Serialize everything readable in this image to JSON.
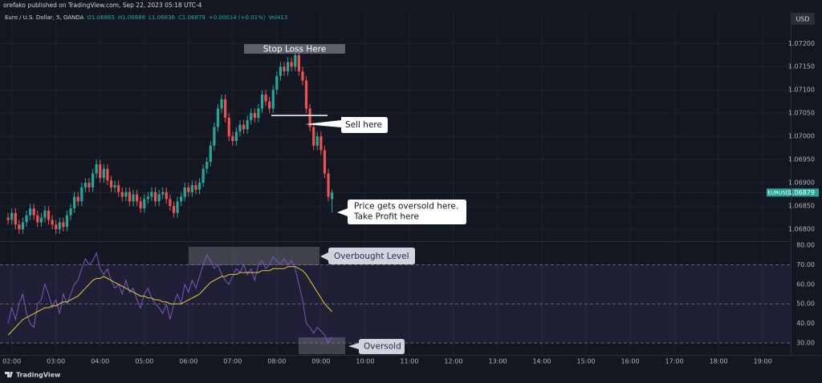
{
  "header": "orefako published on TradingView.com, Sep 22, 2023 05:18 UTC-4",
  "currency": "USD",
  "logo": "TradingView",
  "chart_data": [
    {
      "type": "candlestick",
      "title": "Euro / U.S. Dollar, 5, OANDA",
      "ohlc": [
        "O1.06865",
        "H1.06886",
        "L1.06836",
        "C1.06879",
        "+0.00014 (+0.01%)"
      ],
      "volume": "Vol413",
      "symbol": "EURUSD",
      "up_color": "#26a69a",
      "down_color": "#ef5350",
      "x": [
        "01:55",
        "02:00",
        "02:05",
        "02:10",
        "02:15",
        "02:20",
        "02:25",
        "02:30",
        "02:35",
        "02:40",
        "02:45",
        "02:50",
        "02:55",
        "03:00",
        "03:05",
        "03:10",
        "03:15",
        "03:20",
        "03:25",
        "03:30",
        "03:35",
        "03:40",
        "03:45",
        "03:50",
        "03:55",
        "04:00",
        "04:05",
        "04:10",
        "04:15",
        "04:20",
        "04:25",
        "04:30",
        "04:35",
        "04:40",
        "04:45",
        "04:50",
        "04:55",
        "05:00",
        "05:05",
        "05:10",
        "05:15",
        "05:20",
        "05:25",
        "05:30",
        "05:35",
        "05:40",
        "05:45",
        "05:50",
        "05:55",
        "06:00",
        "06:05",
        "06:10",
        "06:15",
        "06:20",
        "06:25",
        "06:30",
        "06:35",
        "06:40",
        "06:45",
        "06:50",
        "06:55",
        "07:00",
        "07:05",
        "07:10",
        "07:15",
        "07:20",
        "07:25",
        "07:30",
        "07:35",
        "07:40",
        "07:45",
        "07:50",
        "07:55",
        "08:00",
        "08:05",
        "08:10",
        "08:15",
        "08:20",
        "08:25",
        "08:30",
        "08:35",
        "08:40",
        "08:45",
        "08:50",
        "08:55",
        "09:00",
        "09:05",
        "09:10",
        "09:15"
      ],
      "open": [
        1.06825,
        1.0682,
        1.06835,
        1.0681,
        1.068,
        1.06815,
        1.0683,
        1.06845,
        1.0683,
        1.06815,
        1.06825,
        1.0684,
        1.0682,
        1.0681,
        1.068,
        1.06815,
        1.06805,
        1.0683,
        1.06845,
        1.0687,
        1.0686,
        1.0689,
        1.069,
        1.0689,
        1.0692,
        1.0694,
        1.0691,
        1.0693,
        1.06905,
        1.0689,
        1.06895,
        1.0688,
        1.0687,
        1.0688,
        1.0686,
        1.06875,
        1.0686,
        1.06845,
        1.06865,
        1.0687,
        1.0688,
        1.0686,
        1.06875,
        1.0688,
        1.06865,
        1.0685,
        1.06835,
        1.0686,
        1.0687,
        1.0689,
        1.0688,
        1.06895,
        1.06885,
        1.069,
        1.0693,
        1.06945,
        1.0698,
        1.0702,
        1.0706,
        1.0708,
        1.0704,
        1.07,
        1.0699,
        1.0701,
        1.07025,
        1.07015,
        1.07035,
        1.0705,
        1.0704,
        1.0706,
        1.0709,
        1.07075,
        1.0706,
        1.071,
        1.0713,
        1.0715,
        1.0714,
        1.0716,
        1.0715,
        1.07175,
        1.0714,
        1.0712,
        1.0706,
        1.0702,
        1.0698,
        1.07,
        1.0697,
        1.0692,
        1.06865
      ],
      "high": [
        1.06835,
        1.06845,
        1.06845,
        1.0682,
        1.06825,
        1.0684,
        1.06855,
        1.06855,
        1.0684,
        1.06835,
        1.0685,
        1.0685,
        1.0683,
        1.0682,
        1.06825,
        1.06825,
        1.0684,
        1.06855,
        1.0688,
        1.0688,
        1.069,
        1.0691,
        1.0691,
        1.0693,
        1.0695,
        1.0695,
        1.0694,
        1.0694,
        1.06915,
        1.06905,
        1.06905,
        1.0689,
        1.0689,
        1.0689,
        1.06885,
        1.06885,
        1.0687,
        1.06875,
        1.0688,
        1.0689,
        1.0689,
        1.06885,
        1.0689,
        1.0689,
        1.06875,
        1.0686,
        1.0687,
        1.0688,
        1.069,
        1.069,
        1.06905,
        1.06905,
        1.0691,
        1.0694,
        1.06955,
        1.0699,
        1.0703,
        1.0707,
        1.0709,
        1.0709,
        1.0705,
        1.0701,
        1.0702,
        1.07035,
        1.07035,
        1.07045,
        1.0706,
        1.0706,
        1.0707,
        1.071,
        1.071,
        1.07085,
        1.0711,
        1.0714,
        1.0716,
        1.0716,
        1.0717,
        1.0717,
        1.07185,
        1.07185,
        1.0715,
        1.0713,
        1.0707,
        1.0703,
        1.0701,
        1.0701,
        1.0698,
        1.0693,
        1.06886
      ],
      "low": [
        1.0681,
        1.0681,
        1.068,
        1.0679,
        1.0679,
        1.06805,
        1.0682,
        1.0682,
        1.06805,
        1.06805,
        1.06815,
        1.0681,
        1.068,
        1.0679,
        1.0679,
        1.06795,
        1.06795,
        1.0682,
        1.06835,
        1.0685,
        1.0685,
        1.0688,
        1.0688,
        1.0688,
        1.0691,
        1.069,
        1.069,
        1.06895,
        1.0688,
        1.0688,
        1.0687,
        1.0686,
        1.0686,
        1.0685,
        1.0685,
        1.0685,
        1.06835,
        1.06835,
        1.06855,
        1.0686,
        1.0685,
        1.0685,
        1.06865,
        1.06855,
        1.0684,
        1.06825,
        1.06825,
        1.0685,
        1.0686,
        1.0687,
        1.0687,
        1.06875,
        1.06875,
        1.0689,
        1.0692,
        1.06935,
        1.0697,
        1.0701,
        1.0705,
        1.0703,
        1.0699,
        1.0698,
        1.0698,
        1.07,
        1.07005,
        1.07005,
        1.07025,
        1.0703,
        1.0703,
        1.0705,
        1.07065,
        1.0705,
        1.0705,
        1.0709,
        1.0712,
        1.0713,
        1.0713,
        1.0714,
        1.0714,
        1.0713,
        1.0711,
        1.0705,
        1.0701,
        1.0697,
        1.0697,
        1.0696,
        1.0691,
        1.0686,
        1.06836
      ],
      "close": [
        1.0682,
        1.06835,
        1.0681,
        1.068,
        1.06815,
        1.0683,
        1.06845,
        1.0683,
        1.06815,
        1.06825,
        1.0684,
        1.0682,
        1.0681,
        1.068,
        1.06815,
        1.06805,
        1.0683,
        1.06845,
        1.0687,
        1.0686,
        1.0689,
        1.069,
        1.0689,
        1.0692,
        1.0694,
        1.0691,
        1.0693,
        1.06905,
        1.0689,
        1.06895,
        1.0688,
        1.0687,
        1.0688,
        1.0686,
        1.06875,
        1.0686,
        1.06845,
        1.06865,
        1.0687,
        1.0688,
        1.0686,
        1.06875,
        1.0688,
        1.06865,
        1.0685,
        1.06835,
        1.0686,
        1.0687,
        1.0689,
        1.0688,
        1.06895,
        1.06885,
        1.069,
        1.0693,
        1.06945,
        1.0698,
        1.0702,
        1.0706,
        1.0708,
        1.0704,
        1.07,
        1.0699,
        1.0701,
        1.07025,
        1.07015,
        1.07035,
        1.0705,
        1.0704,
        1.0706,
        1.0709,
        1.07075,
        1.0706,
        1.071,
        1.0713,
        1.0715,
        1.0714,
        1.0716,
        1.0715,
        1.07175,
        1.0714,
        1.0712,
        1.0706,
        1.0702,
        1.0698,
        1.07,
        1.0697,
        1.0692,
        1.0687,
        1.06879
      ],
      "level_line": 1.07045,
      "xlim": [
        "01:44",
        "19:38"
      ],
      "xticks": [
        "02:00",
        "03:00",
        "04:00",
        "05:00",
        "06:00",
        "07:00",
        "08:00",
        "09:00",
        "10:00",
        "11:00",
        "12:00",
        "13:00",
        "14:00",
        "15:00",
        "16:00",
        "17:00",
        "18:00",
        "19:00"
      ],
      "ylim": [
        1.06776,
        1.07266
      ],
      "yticks": [
        {
          "value": 1.068,
          "label": "1.06800"
        },
        {
          "value": 1.0685,
          "label": "1.06850"
        },
        {
          "value": 1.069,
          "label": "1.06900"
        },
        {
          "value": 1.0695,
          "label": "1.06950"
        },
        {
          "value": 1.07,
          "label": "1.07000"
        },
        {
          "value": 1.0705,
          "label": "1.07050"
        },
        {
          "value": 1.071,
          "label": "1.07100"
        },
        {
          "value": 1.0715,
          "label": "1.07150"
        },
        {
          "value": 1.072,
          "label": "1.07200"
        }
      ],
      "grid": true,
      "annotations": [
        "Stop Loss Here",
        "Sell here",
        "Price gets oversold here.",
        "Take Profit here"
      ]
    },
    {
      "type": "line",
      "series": [
        {
          "color": "#7e57c2",
          "values": [
            40,
            48,
            42,
            50,
            55,
            45,
            40,
            38,
            50,
            52,
            60,
            55,
            48,
            52,
            45,
            55,
            50,
            55,
            60,
            62,
            68,
            73,
            70,
            72,
            76,
            68,
            65,
            68,
            62,
            58,
            60,
            55,
            62,
            56,
            58,
            52,
            48,
            55,
            58,
            53,
            50,
            48,
            45,
            50,
            42,
            50,
            55,
            50,
            60,
            56,
            62,
            58,
            64,
            70,
            75,
            72,
            68,
            70,
            65,
            62,
            60,
            64,
            68,
            66,
            70,
            65,
            68,
            62,
            70,
            72,
            68,
            70,
            74,
            72,
            70,
            73,
            70,
            72,
            68,
            60,
            52,
            40,
            38,
            35,
            38,
            36,
            34,
            30,
            33
          ]
        },
        {
          "color": "#e8c838",
          "values": [
            34,
            36,
            38,
            40,
            42,
            43,
            44,
            45,
            46,
            47,
            48,
            48,
            49,
            49,
            50,
            51,
            51,
            52,
            53,
            54,
            56,
            58,
            60,
            62,
            63,
            63,
            64,
            63,
            62,
            61,
            60,
            59,
            58,
            57,
            56,
            55,
            54,
            54,
            53,
            53,
            52,
            52,
            51,
            51,
            50,
            50,
            50,
            50,
            51,
            52,
            53,
            54,
            55,
            57,
            59,
            61,
            62,
            63,
            64,
            64,
            65,
            65,
            65,
            66,
            66,
            66,
            66,
            66,
            66,
            67,
            67,
            67,
            68,
            68,
            68,
            68,
            69,
            69,
            69,
            68,
            67,
            65,
            62,
            59,
            56,
            53,
            50,
            48,
            46
          ]
        }
      ],
      "levels": [
        30,
        50,
        70
      ],
      "band_color": "#7e57c2",
      "ylim": [
        23.9,
        81.2
      ],
      "yticks": [
        {
          "value": 30,
          "label": "30.00"
        },
        {
          "value": 40,
          "label": "40.00"
        },
        {
          "value": 50,
          "label": "50.00"
        },
        {
          "value": 60,
          "label": "60.00"
        },
        {
          "value": 70,
          "label": "70.00"
        },
        {
          "value": 80,
          "label": "80.00"
        }
      ],
      "annotations": [
        "Overbought Level",
        "Oversold"
      ]
    }
  ]
}
